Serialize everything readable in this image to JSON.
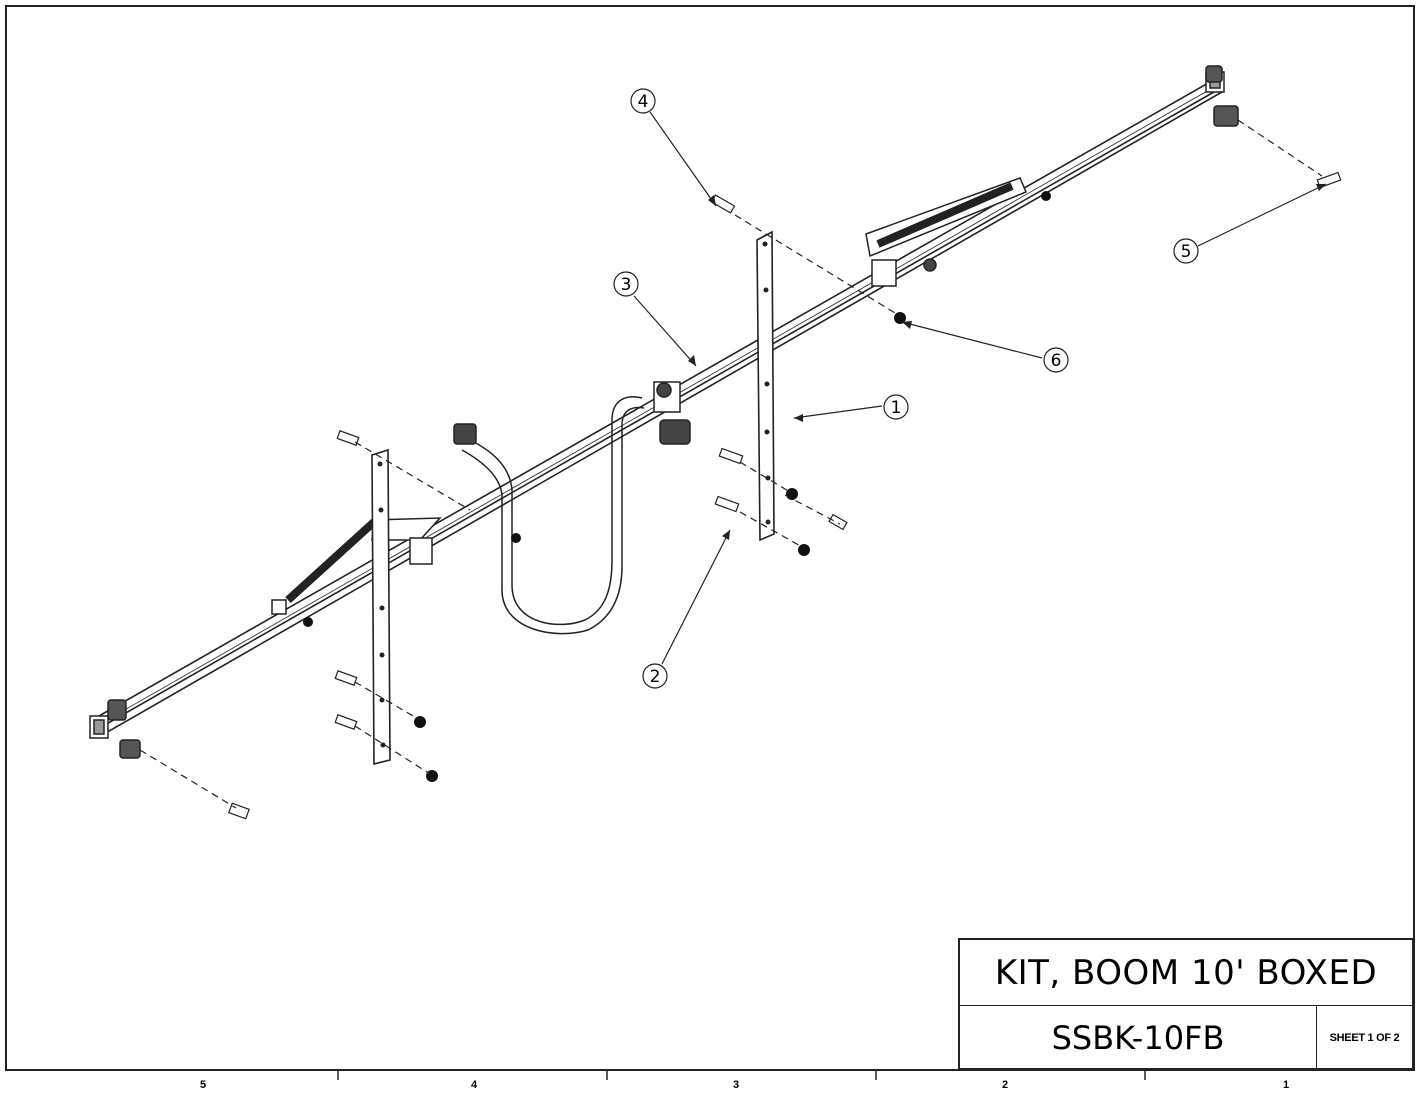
{
  "title_block": {
    "title": "KIT, BOOM 10' BOXED",
    "part_number": "SSBK-10FB",
    "sheet": "SHEET 1 OF 2"
  },
  "zones": [
    "5",
    "4",
    "3",
    "2",
    "1"
  ],
  "balloons": {
    "b1": "1",
    "b2": "2",
    "b3": "3",
    "b4": "4",
    "b5": "5",
    "b6": "6"
  },
  "colors": {
    "line": "#222222",
    "background": "#ffffff"
  }
}
